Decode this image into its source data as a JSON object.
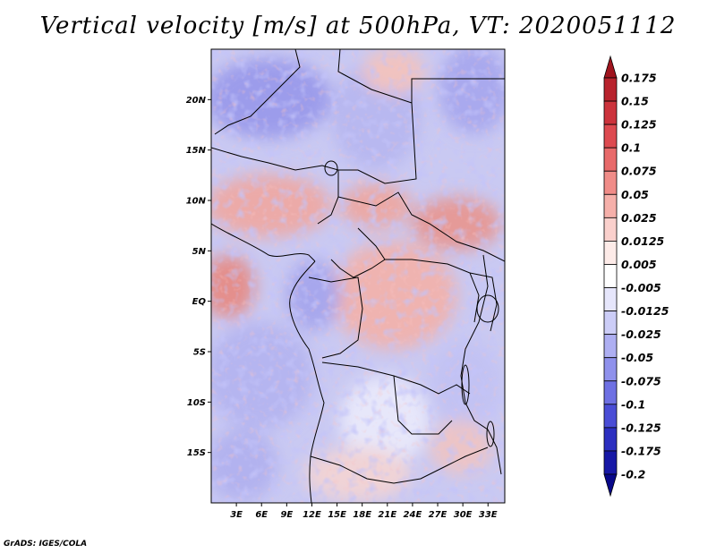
{
  "title": "Vertical velocity [m/s] at 500hPa, VT: 2020051112",
  "credit": "GrADS: IGES/COLA",
  "map": {
    "lon_range": [
      0,
      35
    ],
    "lat_range": [
      -20,
      25
    ],
    "lat_ticks": [
      {
        "value": 20,
        "label": "20N"
      },
      {
        "value": 15,
        "label": "15N"
      },
      {
        "value": 10,
        "label": "10N"
      },
      {
        "value": 5,
        "label": "5N"
      },
      {
        "value": 0,
        "label": "EQ"
      },
      {
        "value": -5,
        "label": "5S"
      },
      {
        "value": -10,
        "label": "10S"
      },
      {
        "value": -15,
        "label": "15S"
      }
    ],
    "lon_ticks": [
      {
        "value": 3,
        "label": "3E"
      },
      {
        "value": 6,
        "label": "6E"
      },
      {
        "value": 9,
        "label": "9E"
      },
      {
        "value": 12,
        "label": "12E"
      },
      {
        "value": 15,
        "label": "15E"
      },
      {
        "value": 18,
        "label": "18E"
      },
      {
        "value": 21,
        "label": "21E"
      },
      {
        "value": 24,
        "label": "24E"
      },
      {
        "value": 27,
        "label": "27E"
      },
      {
        "value": 30,
        "label": "30E"
      },
      {
        "value": 33,
        "label": "33E"
      }
    ]
  },
  "colorbar": {
    "labels": [
      "0.175",
      "0.15",
      "0.125",
      "0.1",
      "0.075",
      "0.05",
      "0.025",
      "0.0125",
      "0.005",
      "-0.005",
      "-0.0125",
      "-0.025",
      "-0.05",
      "-0.075",
      "-0.1",
      "-0.125",
      "-0.175",
      "-0.2"
    ],
    "colors": [
      "#a0141e",
      "#b8232d",
      "#cc333c",
      "#dd4a50",
      "#e86a6a",
      "#f08c88",
      "#f6b0aa",
      "#fad0cc",
      "#fdebe8",
      "#ffffff",
      "#e6e6fb",
      "#cccdf7",
      "#aeaff2",
      "#8f91ec",
      "#6e70e3",
      "#4a4dd6",
      "#2c2fc0",
      "#1718a6",
      "#08088a"
    ]
  },
  "chart_data": {
    "type": "heatmap",
    "title": "Vertical velocity [m/s] at 500hPa, VT: 2020051112",
    "variable": "Vertical velocity",
    "units": "m/s",
    "level": "500hPa",
    "valid_time": "2020051112",
    "xlabel": "",
    "ylabel": "",
    "x_range": [
      0,
      35
    ],
    "y_range": [
      -20,
      25
    ],
    "x_ticks": [
      "3E",
      "6E",
      "9E",
      "12E",
      "15E",
      "18E",
      "21E",
      "24E",
      "27E",
      "30E",
      "33E"
    ],
    "y_ticks": [
      "20N",
      "15N",
      "10N",
      "5N",
      "EQ",
      "5S",
      "10S",
      "15S"
    ],
    "colorbar_levels": [
      -0.2,
      -0.175,
      -0.125,
      -0.1,
      -0.075,
      -0.05,
      -0.025,
      -0.0125,
      -0.005,
      0.005,
      0.0125,
      0.025,
      0.05,
      0.075,
      0.1,
      0.125,
      0.15,
      0.175
    ],
    "notes": "Positive (red) upward motion concentrated over Congo Basin, central Africa 10N–5N and coastal Gulf of Guinea; negative (blue) over Sahara north and southern Atlantic."
  }
}
